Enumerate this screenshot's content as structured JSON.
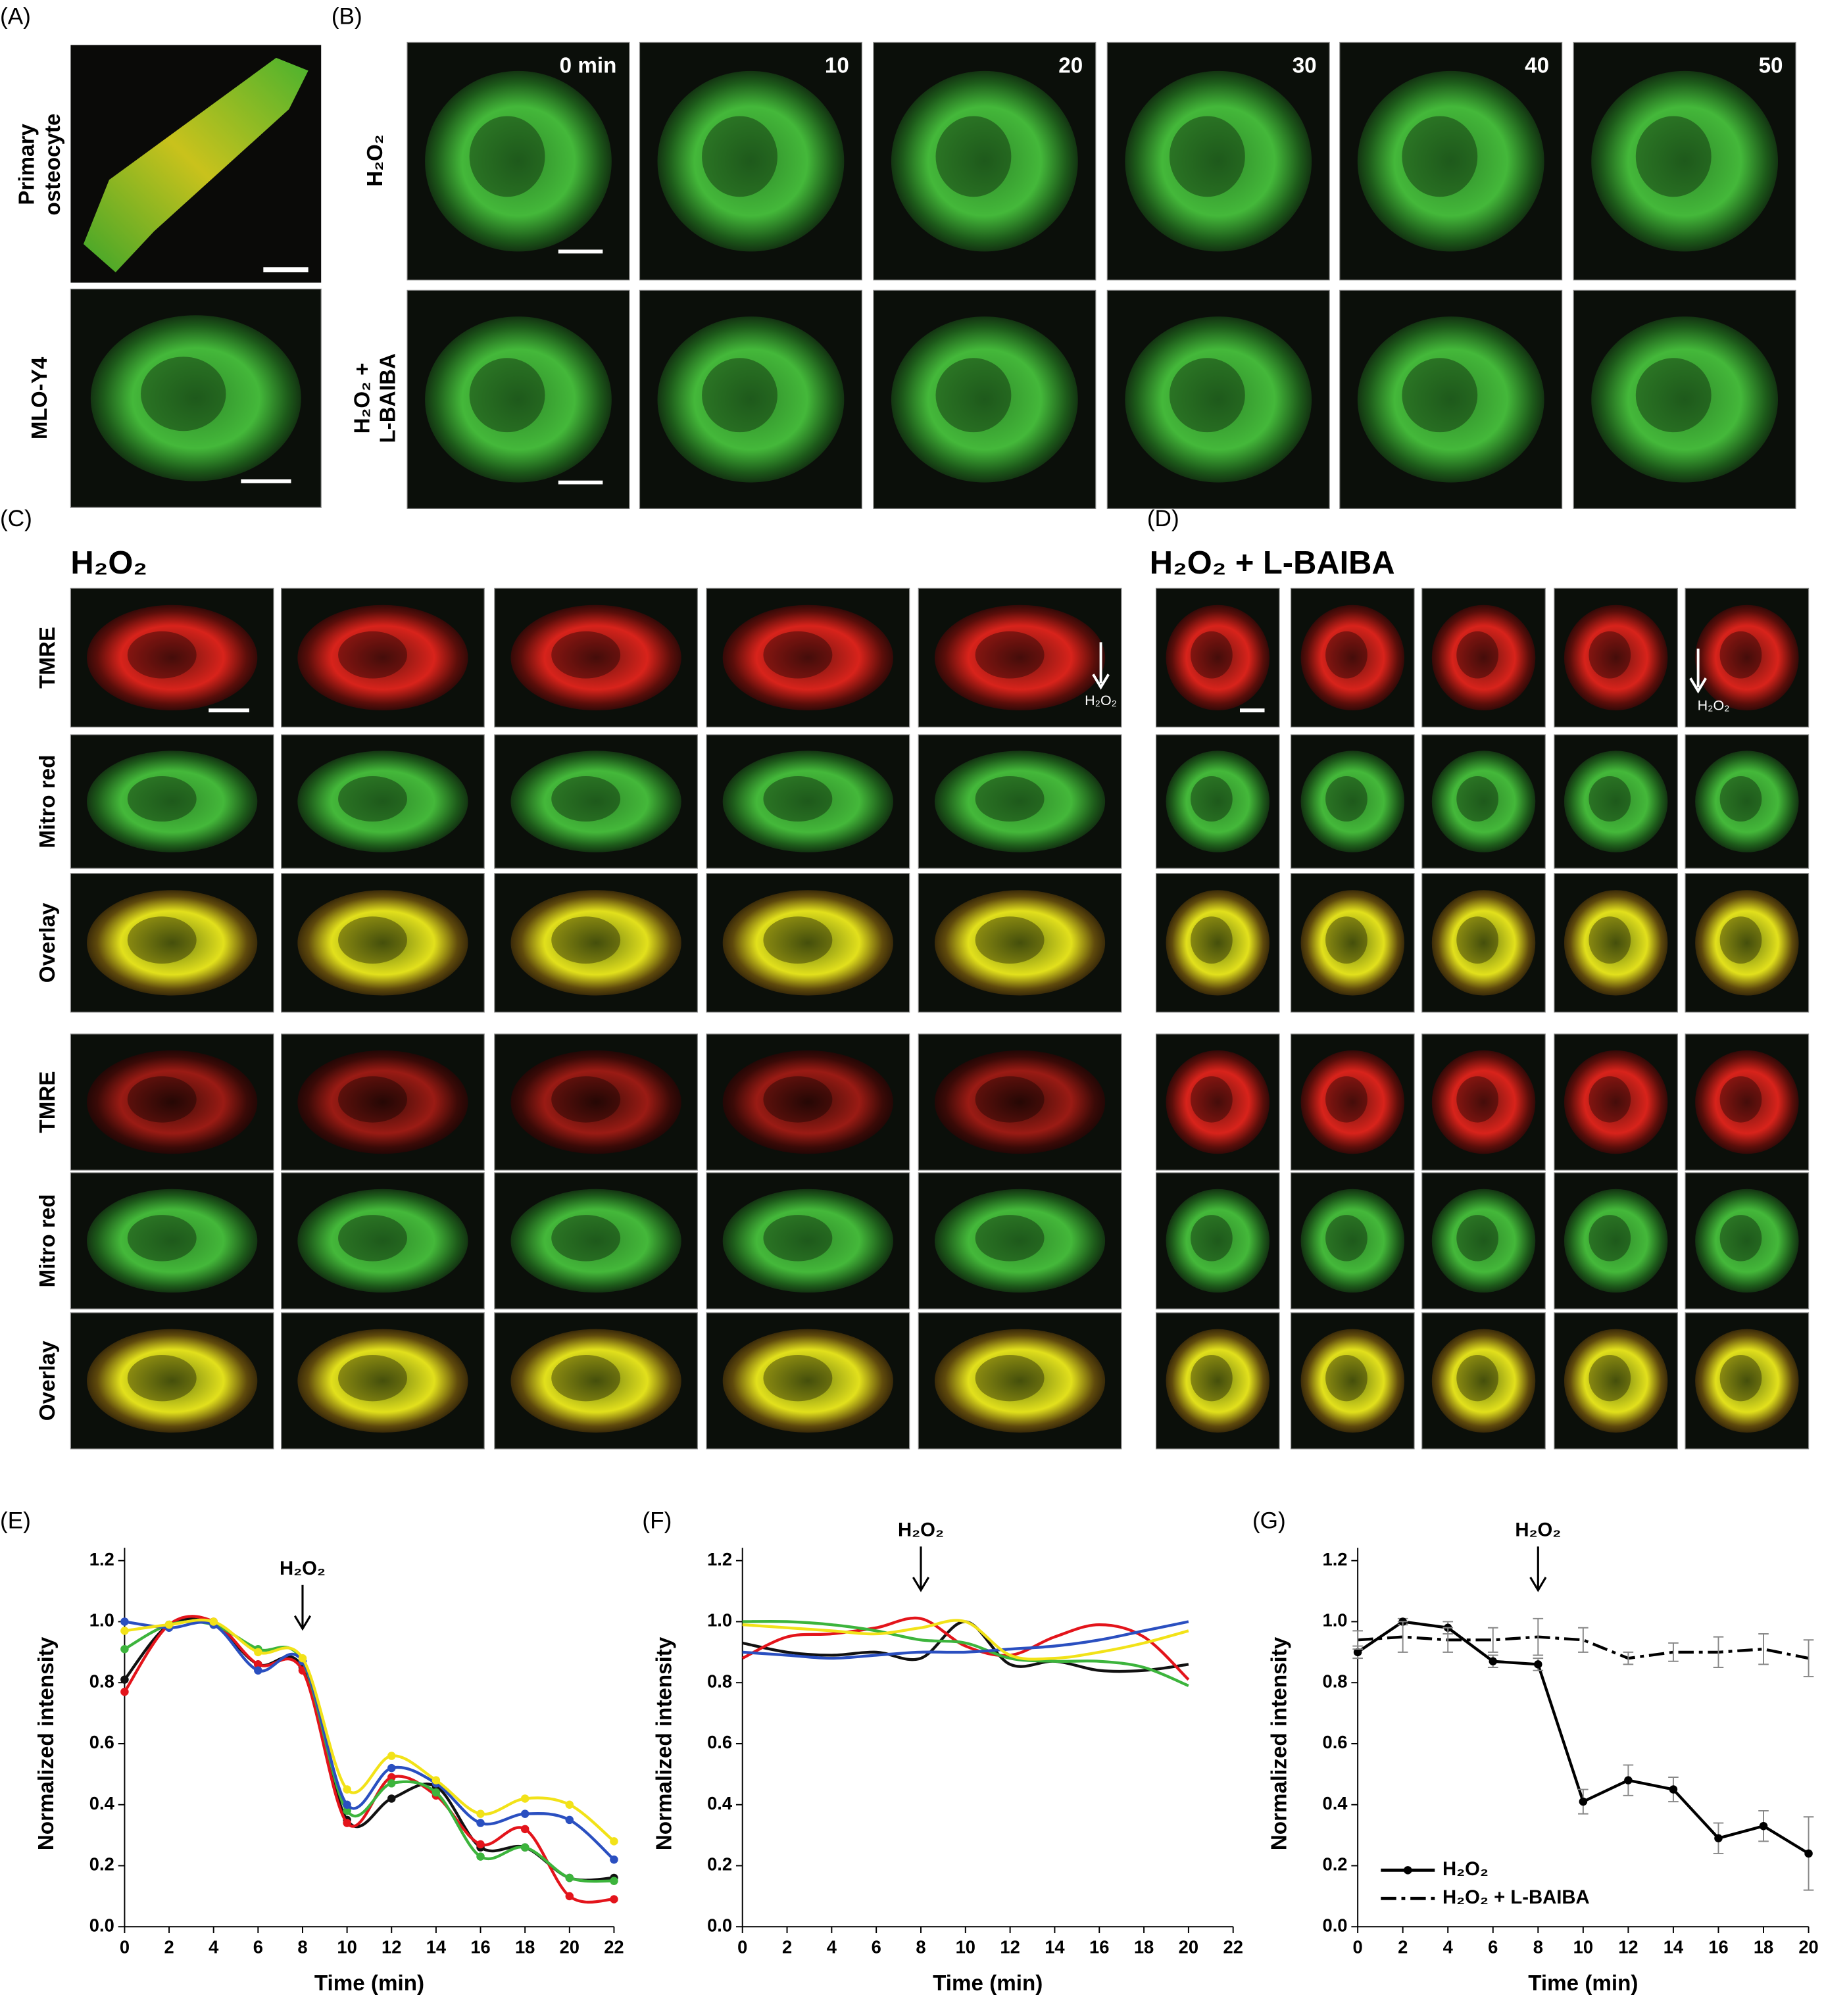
{
  "panels": {
    "A": {
      "label": "(A)",
      "rows": [
        [
          "Primary",
          "osteocyte"
        ],
        [
          "MLO-Y4"
        ]
      ]
    },
    "B": {
      "label": "(B)",
      "rows": [
        [
          "H₂O₂"
        ],
        [
          "H₂O₂ +",
          "L-BAIBA"
        ]
      ],
      "times": [
        "0 min",
        "10",
        "20",
        "30",
        "40",
        "50"
      ]
    },
    "C": {
      "label": "(C)",
      "title": "H₂O₂",
      "rows": [
        "TMRE",
        "Mitro red",
        "Overlay",
        "TMRE",
        "Mitro red",
        "Overlay"
      ],
      "annotation": "H₂O₂"
    },
    "D": {
      "label": "(D)",
      "title": "H₂O₂ + L-BAIBA",
      "annotation": "H₂O₂"
    },
    "E": {
      "label": "(E)"
    },
    "F": {
      "label": "(F)"
    },
    "G": {
      "label": "(G)"
    }
  },
  "chart_data": [
    {
      "type": "line",
      "xlabel": "Time (min)",
      "ylabel": "Normalized intensity",
      "smooth": true,
      "markers": true,
      "annotation": {
        "text": "H₂O₂",
        "x": 8
      },
      "x": [
        0,
        2,
        4,
        6,
        8,
        10,
        12,
        14,
        16,
        18,
        20,
        22
      ],
      "series": [
        {
          "color": "#111111",
          "values": [
            0.81,
            0.99,
            0.99,
            0.86,
            0.85,
            0.35,
            0.42,
            0.46,
            0.26,
            0.26,
            0.16,
            0.16
          ]
        },
        {
          "color": "#e3141b",
          "values": [
            0.77,
            0.99,
            1.0,
            0.86,
            0.84,
            0.34,
            0.49,
            0.43,
            0.27,
            0.32,
            0.1,
            0.09
          ]
        },
        {
          "color": "#3cb43c",
          "values": [
            0.91,
            0.99,
            0.99,
            0.91,
            0.87,
            0.38,
            0.47,
            0.44,
            0.23,
            0.26,
            0.16,
            0.15
          ]
        },
        {
          "color": "#2a4fc0",
          "values": [
            1.0,
            0.98,
            0.99,
            0.84,
            0.87,
            0.4,
            0.52,
            0.47,
            0.34,
            0.37,
            0.35,
            0.22
          ]
        },
        {
          "color": "#f2e218",
          "values": [
            0.97,
            0.99,
            1.0,
            0.9,
            0.88,
            0.45,
            0.56,
            0.48,
            0.37,
            0.42,
            0.4,
            0.28
          ]
        }
      ],
      "xlim": [
        0,
        22
      ],
      "xticks": [
        0,
        2,
        4,
        6,
        8,
        10,
        12,
        14,
        16,
        18,
        20,
        22
      ],
      "ylim": [
        0,
        1.2
      ],
      "yticks": [
        {
          "value": 0,
          "label": "0.0"
        },
        0.2,
        0.4,
        0.6,
        0.8,
        {
          "value": 1,
          "label": "1.0"
        },
        1.2
      ]
    },
    {
      "type": "line",
      "xlabel": "Time (min)",
      "ylabel": "Normalized intensity",
      "smooth": true,
      "markers": false,
      "annotation": {
        "text": "H₂O₂",
        "x": 8
      },
      "x": [
        0,
        2,
        4,
        6,
        8,
        10,
        12,
        14,
        16,
        18,
        20
      ],
      "series": [
        {
          "color": "#111111",
          "values": [
            0.93,
            0.9,
            0.89,
            0.9,
            0.88,
            1.0,
            0.86,
            0.87,
            0.84,
            0.84,
            0.86
          ]
        },
        {
          "color": "#e3141b",
          "values": [
            0.88,
            0.95,
            0.96,
            0.98,
            1.01,
            0.92,
            0.89,
            0.95,
            0.99,
            0.95,
            0.81
          ]
        },
        {
          "color": "#3cb43c",
          "values": [
            1.0,
            1.0,
            0.99,
            0.97,
            0.94,
            0.93,
            0.88,
            0.87,
            0.87,
            0.85,
            0.79
          ]
        },
        {
          "color": "#2a4fc0",
          "values": [
            0.9,
            0.89,
            0.88,
            0.89,
            0.9,
            0.9,
            0.91,
            0.92,
            0.94,
            0.97,
            1.0
          ]
        },
        {
          "color": "#f2e218",
          "values": [
            0.99,
            0.98,
            0.97,
            0.96,
            0.98,
            1.0,
            0.89,
            0.88,
            0.9,
            0.93,
            0.97
          ]
        }
      ],
      "xlim": [
        0,
        22
      ],
      "xticks": [
        0,
        2,
        4,
        6,
        8,
        10,
        12,
        14,
        16,
        18,
        20,
        22
      ],
      "ylim": [
        0,
        1.2
      ],
      "yticks": [
        {
          "value": 0,
          "label": "0.0"
        },
        0.2,
        0.4,
        0.6,
        0.8,
        {
          "value": 1,
          "label": "1.0"
        },
        1.2
      ]
    },
    {
      "type": "line",
      "xlabel": "Time (min)",
      "ylabel": "Normalized intensity",
      "smooth": false,
      "markers": true,
      "legend": "lower left",
      "annotation": {
        "text": "H₂O₂",
        "x": 8
      },
      "x": [
        0,
        2,
        4,
        6,
        8,
        10,
        12,
        14,
        16,
        18,
        20
      ],
      "series": [
        {
          "name": "H₂O₂",
          "color": "#000000",
          "dash": false,
          "values": [
            0.9,
            1.0,
            0.98,
            0.87,
            0.86,
            0.41,
            0.48,
            0.45,
            0.29,
            0.33,
            0.24
          ],
          "errors": [
            0.02,
            0.01,
            0.02,
            0.02,
            0.02,
            0.04,
            0.05,
            0.04,
            0.05,
            0.05,
            0.12
          ]
        },
        {
          "name": "H₂O₂ + L-BAIBA",
          "color": "#000000",
          "dash": true,
          "values": [
            0.94,
            0.95,
            0.94,
            0.94,
            0.95,
            0.94,
            0.88,
            0.9,
            0.9,
            0.91,
            0.88
          ],
          "errors": [
            0.03,
            0.05,
            0.04,
            0.04,
            0.06,
            0.04,
            0.02,
            0.03,
            0.05,
            0.05,
            0.06
          ]
        }
      ],
      "xlim": [
        0,
        20
      ],
      "xticks": [
        0,
        2,
        4,
        6,
        8,
        10,
        12,
        14,
        16,
        18,
        20
      ],
      "ylim": [
        0,
        1.2
      ],
      "yticks": [
        {
          "value": 0,
          "label": "0.0"
        },
        0.2,
        0.4,
        0.6,
        0.8,
        {
          "value": 1,
          "label": "1.0"
        },
        1.2
      ]
    }
  ]
}
